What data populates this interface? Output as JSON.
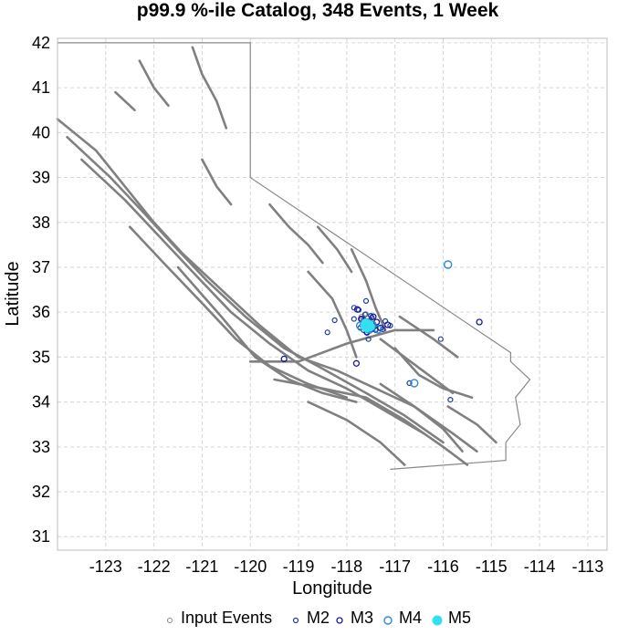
{
  "chart_data": {
    "type": "scatter",
    "title": "p99.9 %-ile Catalog, 348 Events, 1 Week",
    "xlabel": "Longitude",
    "ylabel": "Latitude",
    "xlim": [
      -124.0,
      -112.6
    ],
    "ylim": [
      30.7,
      42.1
    ],
    "xticks": [
      -123,
      -122,
      -121,
      -120,
      -119,
      -118,
      -117,
      -116,
      -115,
      -114,
      -113
    ],
    "yticks": [
      31,
      32,
      33,
      34,
      35,
      36,
      37,
      38,
      39,
      40,
      41,
      42
    ],
    "xtick_labels": [
      "-123",
      "-122",
      "-121",
      "-120",
      "-119",
      "-118",
      "-117",
      "-116",
      "-115",
      "-114",
      "-113"
    ],
    "ytick_labels": [
      "31",
      "32",
      "33",
      "34",
      "35",
      "36",
      "37",
      "38",
      "39",
      "40",
      "41",
      "42"
    ],
    "grid": true,
    "legend_position": "bottom",
    "colors": {
      "faults": "#808080",
      "boundary": "#888888",
      "input": "#888888",
      "M2": "#1f3c9a",
      "M3": "#1a1a9a",
      "M4": "#2a8ad6",
      "M5": "#33e0f0",
      "grid": "#d6d6d6"
    },
    "legend": [
      {
        "label": "Input Events",
        "style": "input",
        "radius": 2.5
      },
      {
        "label": "M2",
        "style": "M2",
        "radius": 2.5
      },
      {
        "label": "M3",
        "style": "M3",
        "radius": 3
      },
      {
        "label": "M4",
        "style": "M4",
        "radius": 4
      },
      {
        "label": "M5",
        "style": "M5",
        "radius": 5
      }
    ],
    "series": [
      {
        "name": "Input Events",
        "style": "input",
        "points": [
          [
            -117.62,
            35.78
          ],
          [
            -117.55,
            35.7
          ],
          [
            -117.48,
            35.66
          ],
          [
            -117.58,
            35.62
          ],
          [
            -117.44,
            35.74
          ],
          [
            -117.66,
            35.84
          ],
          [
            -117.52,
            35.58
          ],
          [
            -117.7,
            35.9
          ],
          [
            -117.4,
            35.62
          ],
          [
            -117.6,
            35.96
          ]
        ]
      },
      {
        "name": "M2",
        "style": "M2",
        "points": [
          [
            -117.6,
            35.72
          ],
          [
            -117.55,
            35.8
          ],
          [
            -117.5,
            35.65
          ],
          [
            -117.65,
            35.6
          ],
          [
            -117.45,
            35.7
          ],
          [
            -117.7,
            35.85
          ],
          [
            -117.58,
            35.55
          ],
          [
            -117.4,
            35.6
          ],
          [
            -117.62,
            35.95
          ],
          [
            -117.48,
            35.88
          ],
          [
            -117.75,
            36.05
          ],
          [
            -117.68,
            35.7
          ],
          [
            -117.53,
            35.75
          ],
          [
            -117.57,
            35.66
          ],
          [
            -117.63,
            35.82
          ],
          [
            -117.5,
            35.92
          ],
          [
            -117.72,
            35.65
          ],
          [
            -117.42,
            35.68
          ],
          [
            -117.55,
            35.4
          ],
          [
            -117.85,
            36.1
          ],
          [
            -118.25,
            35.82
          ],
          [
            -117.85,
            35.85
          ],
          [
            -117.6,
            36.25
          ],
          [
            -117.1,
            35.7
          ],
          [
            -116.05,
            35.4
          ],
          [
            -115.85,
            34.05
          ],
          [
            -117.25,
            35.62
          ],
          [
            -118.4,
            35.55
          ],
          [
            -116.7,
            34.42
          ],
          [
            -117.2,
            35.8
          ]
        ]
      },
      {
        "name": "M3",
        "style": "M3",
        "points": [
          [
            -117.55,
            35.7
          ],
          [
            -117.45,
            35.9
          ],
          [
            -117.65,
            35.75
          ],
          [
            -117.5,
            35.62
          ],
          [
            -117.38,
            35.78
          ],
          [
            -117.78,
            36.06
          ],
          [
            -117.7,
            35.85
          ],
          [
            -117.3,
            35.65
          ],
          [
            -117.15,
            35.72
          ],
          [
            -119.3,
            34.96
          ],
          [
            -117.8,
            34.86
          ],
          [
            -115.25,
            35.78
          ],
          [
            -117.58,
            35.55
          ]
        ]
      },
      {
        "name": "M4",
        "style": "M4",
        "points": [
          [
            -115.9,
            37.06
          ],
          [
            -117.35,
            35.62
          ],
          [
            -117.72,
            35.7
          ],
          [
            -117.55,
            35.62
          ],
          [
            -117.48,
            35.72
          ],
          [
            -116.6,
            34.42
          ]
        ]
      },
      {
        "name": "M5",
        "style": "M5",
        "points": [
          [
            -117.6,
            35.75
          ],
          [
            -117.55,
            35.72
          ],
          [
            -117.52,
            35.68
          ],
          [
            -117.58,
            35.66
          ],
          [
            -117.62,
            35.7
          ]
        ]
      }
    ]
  }
}
